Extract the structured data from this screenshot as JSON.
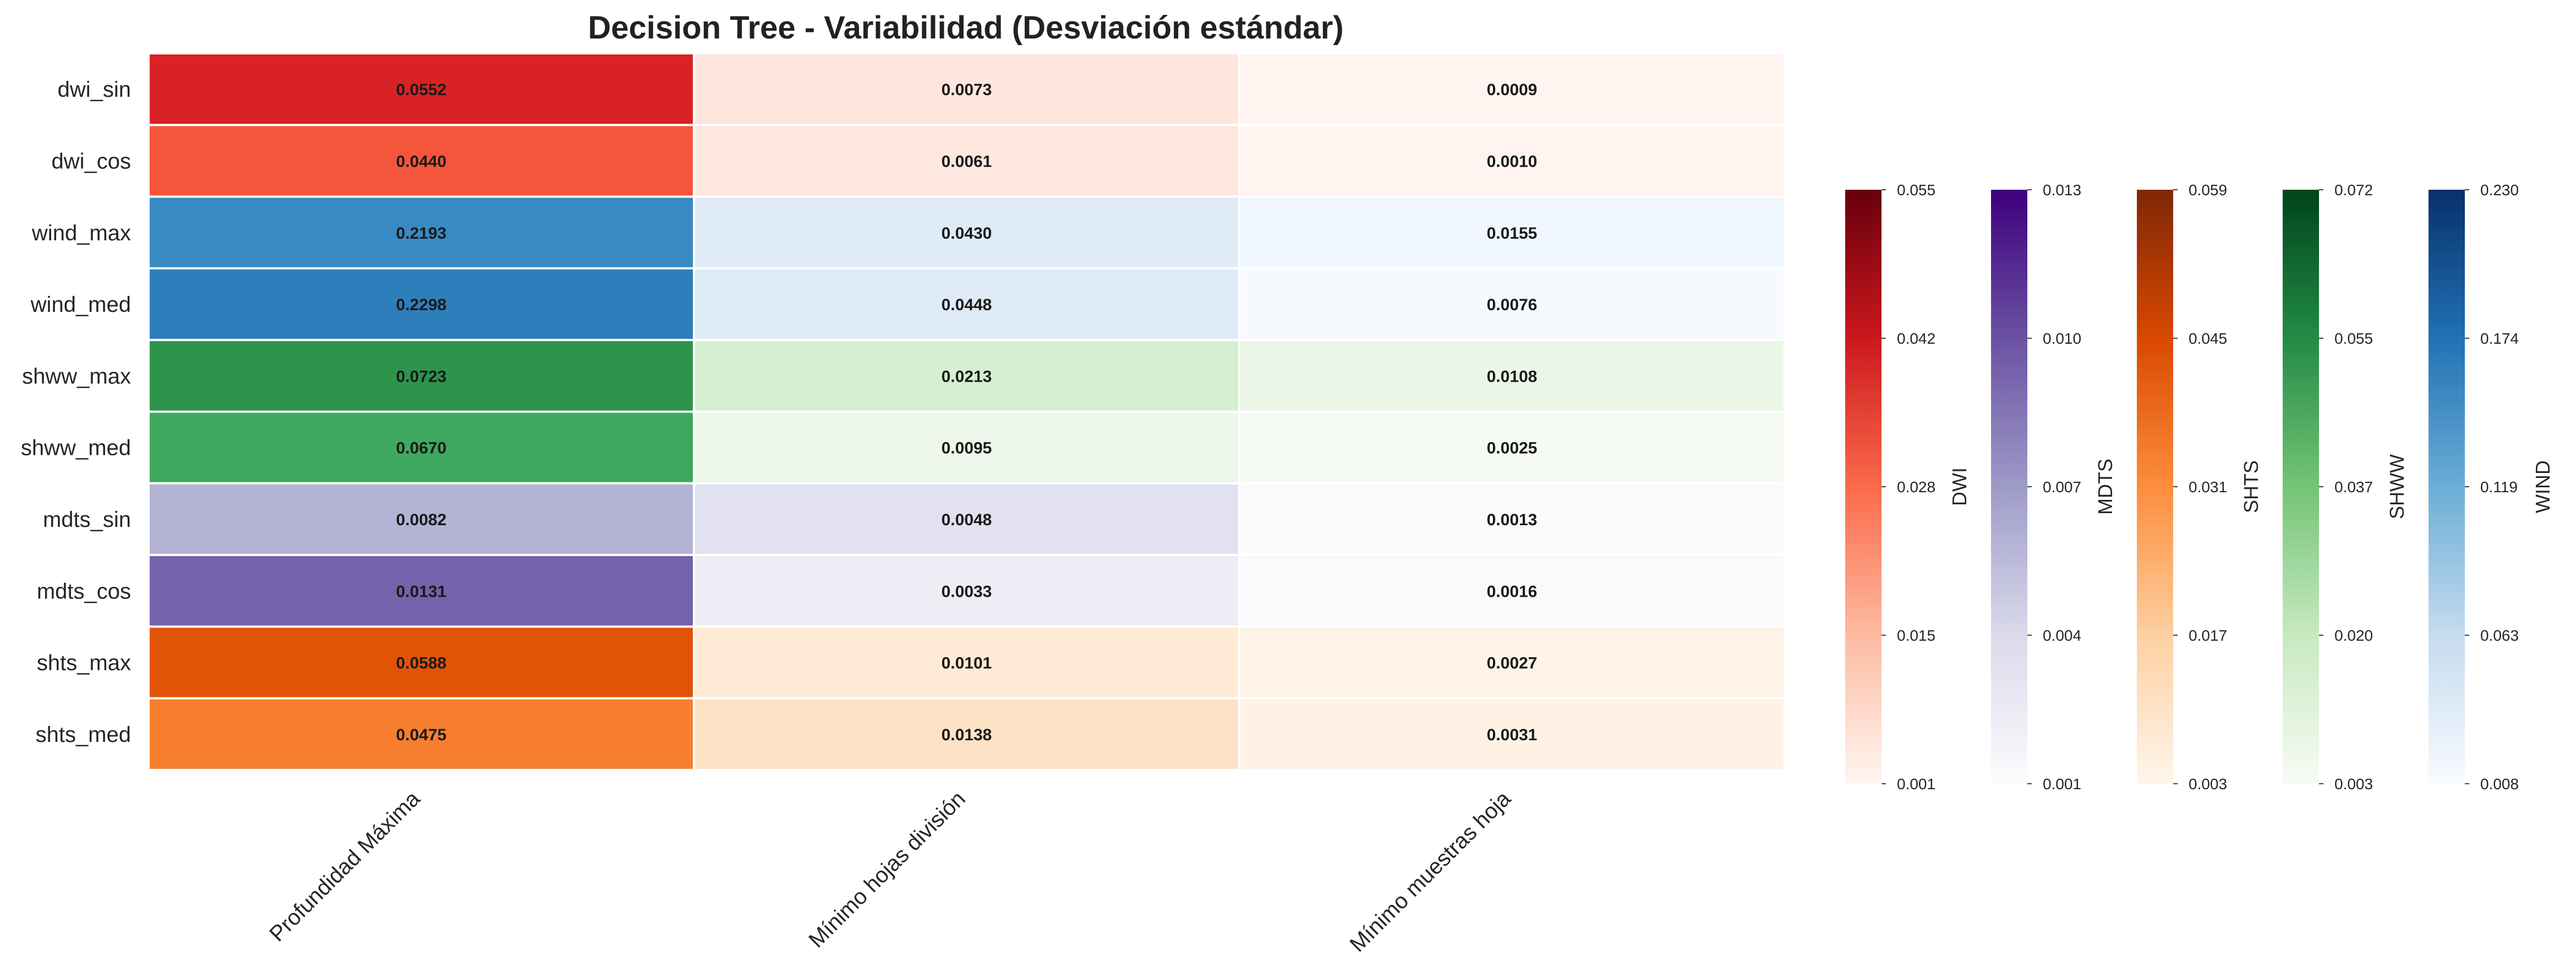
{
  "chart_data": {
    "type": "heatmap",
    "title": "Decision Tree - Variabilidad (Desviación estándar)",
    "columns": [
      "Profundidad Máxima",
      "Mínimo hojas división",
      "Mínimo muestras hoja"
    ],
    "rows": [
      {
        "label": "dwi_sin",
        "group": "DWI",
        "values": [
          0.0552,
          0.0073,
          0.0009
        ]
      },
      {
        "label": "dwi_cos",
        "group": "DWI",
        "values": [
          0.044,
          0.0061,
          0.001
        ]
      },
      {
        "label": "wind_max",
        "group": "WIND",
        "values": [
          0.2193,
          0.043,
          0.0155
        ]
      },
      {
        "label": "wind_med",
        "group": "WIND",
        "values": [
          0.2298,
          0.0448,
          0.0076
        ]
      },
      {
        "label": "shww_max",
        "group": "SHWW",
        "values": [
          0.0723,
          0.0213,
          0.0108
        ]
      },
      {
        "label": "shww_med",
        "group": "SHWW",
        "values": [
          0.067,
          0.0095,
          0.0025
        ]
      },
      {
        "label": "mdts_sin",
        "group": "MDTS",
        "values": [
          0.0082,
          0.0048,
          0.0013
        ]
      },
      {
        "label": "mdts_cos",
        "group": "MDTS",
        "values": [
          0.0131,
          0.0033,
          0.0016
        ]
      },
      {
        "label": "shts_max",
        "group": "SHTS",
        "values": [
          0.0588,
          0.0101,
          0.0027
        ]
      },
      {
        "label": "shts_med",
        "group": "SHTS",
        "values": [
          0.0475,
          0.0138,
          0.0031
        ]
      }
    ],
    "colorbars": [
      {
        "name": "DWI",
        "colormap": "Reds",
        "min": 0.0009,
        "max": 0.0552,
        "ticks": [
          "0.001",
          "0.015",
          "0.028",
          "0.042",
          "0.055"
        ],
        "colors": [
          "#fff5f0",
          "#fcbba1",
          "#fb6a4a",
          "#cb181d",
          "#67000d"
        ]
      },
      {
        "name": "MDTS",
        "colormap": "Purples",
        "min": 0.0013,
        "max": 0.0131,
        "ticks": [
          "0.001",
          "0.004",
          "0.007",
          "0.010",
          "0.013"
        ],
        "colors": [
          "#fcfbfd",
          "#dadaeb",
          "#9e9ac8",
          "#6a51a3",
          "#3f007d"
        ]
      },
      {
        "name": "SHTS",
        "colormap": "Oranges",
        "min": 0.0027,
        "max": 0.0588,
        "ticks": [
          "0.003",
          "0.017",
          "0.031",
          "0.045",
          "0.059"
        ],
        "colors": [
          "#fff5eb",
          "#fdd0a2",
          "#fd8d3c",
          "#d94801",
          "#7f2704"
        ]
      },
      {
        "name": "SHWW",
        "colormap": "Greens",
        "min": 0.0025,
        "max": 0.0723,
        "ticks": [
          "0.003",
          "0.020",
          "0.037",
          "0.055",
          "0.072"
        ],
        "colors": [
          "#f7fcf5",
          "#c7e9c0",
          "#74c476",
          "#238b45",
          "#00441b"
        ]
      },
      {
        "name": "WIND",
        "colormap": "Blues",
        "min": 0.0076,
        "max": 0.2298,
        "ticks": [
          "0.008",
          "0.063",
          "0.119",
          "0.174",
          "0.230"
        ],
        "colors": [
          "#f7fbff",
          "#c6dbef",
          "#6baed6",
          "#2171b5",
          "#08306b"
        ]
      }
    ],
    "cell_colors": [
      [
        "#d92224",
        "#fee6dc",
        "#fff4ef"
      ],
      [
        "#f5553b",
        "#fee7df",
        "#fff4ef"
      ],
      [
        "#3989c3",
        "#dfebf7",
        "#f1f7fe"
      ],
      [
        "#2e7ebc",
        "#deebf7",
        "#f6faff"
      ],
      [
        "#2e944b",
        "#d6efd0",
        "#ebf7e6"
      ],
      [
        "#3ea95e",
        "#edf8ea",
        "#f5fbf3"
      ],
      [
        "#b3b3d6",
        "#e1e1ef",
        "#fbfafd"
      ],
      [
        "#7462ab",
        "#eeecf4",
        "#faf9fc"
      ],
      [
        "#e15407",
        "#feead5",
        "#fff3e7"
      ],
      [
        "#f67e2e",
        "#fde2c6",
        "#fff2e5"
      ]
    ],
    "grid": false,
    "annotations": "cell values shown in bold"
  }
}
